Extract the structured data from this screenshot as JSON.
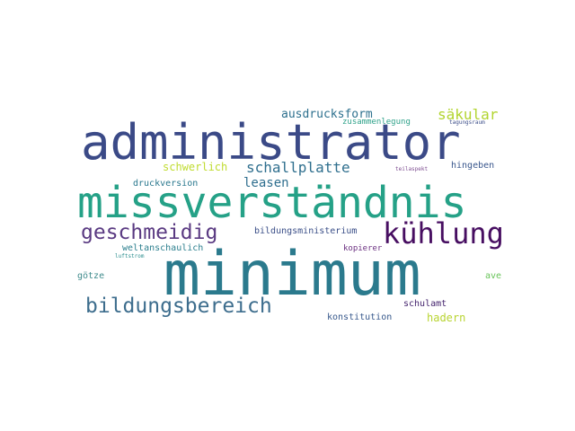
{
  "words": [
    {
      "id": "administrator",
      "text": "administrator",
      "color": "#3b4a87"
    },
    {
      "id": "missverstandnis",
      "text": "missverständnis",
      "color": "#25a187"
    },
    {
      "id": "minimum",
      "text": "minimum",
      "color": "#2b7a8d"
    },
    {
      "id": "kuhlung",
      "text": "kühlung",
      "color": "#470e61"
    },
    {
      "id": "geschmeidig",
      "text": "geschmeidig",
      "color": "#5a3a82"
    },
    {
      "id": "bildungsbereich",
      "text": "bildungsbereich",
      "color": "#3d6d8d"
    },
    {
      "id": "schallplatte",
      "text": "schallplatte",
      "color": "#2f6f8e"
    },
    {
      "id": "sakular",
      "text": "säkular",
      "color": "#b2d42f"
    },
    {
      "id": "ausdrucksform",
      "text": "ausdrucksform",
      "color": "#2d708e"
    },
    {
      "id": "leasen",
      "text": "leasen",
      "color": "#2e6e8e"
    },
    {
      "id": "schwerlich",
      "text": "schwerlich",
      "color": "#c0dc31"
    },
    {
      "id": "druckversion",
      "text": "druckversion",
      "color": "#2a788e"
    },
    {
      "id": "bildungsministerium",
      "text": "bildungsministerium",
      "color": "#3b4f88"
    },
    {
      "id": "weltanschaulich",
      "text": "weltanschaulich",
      "color": "#2c7f8e"
    },
    {
      "id": "zusammenlegung",
      "text": "zusammenlegung",
      "color": "#2fa28a"
    },
    {
      "id": "tagungsraum",
      "text": "tagungsraum",
      "color": "#3d4e8a"
    },
    {
      "id": "hingeben",
      "text": "hingeben",
      "color": "#39568c"
    },
    {
      "id": "teilaspekt",
      "text": "teilaspekt",
      "color": "#7e4e91"
    },
    {
      "id": "kopierer",
      "text": "kopierer",
      "color": "#6a2f80"
    },
    {
      "id": "luftstrom",
      "text": "luftstrom",
      "color": "#2a8d8d"
    },
    {
      "id": "gotze",
      "text": "götze",
      "color": "#3f8b8c"
    },
    {
      "id": "schulamt",
      "text": "schulamt",
      "color": "#45246e"
    },
    {
      "id": "hadern",
      "text": "hadern",
      "color": "#b8d431"
    },
    {
      "id": "konstitution",
      "text": "konstitution",
      "color": "#38598c"
    },
    {
      "id": "ave",
      "text": "ave",
      "color": "#69c45a"
    }
  ]
}
